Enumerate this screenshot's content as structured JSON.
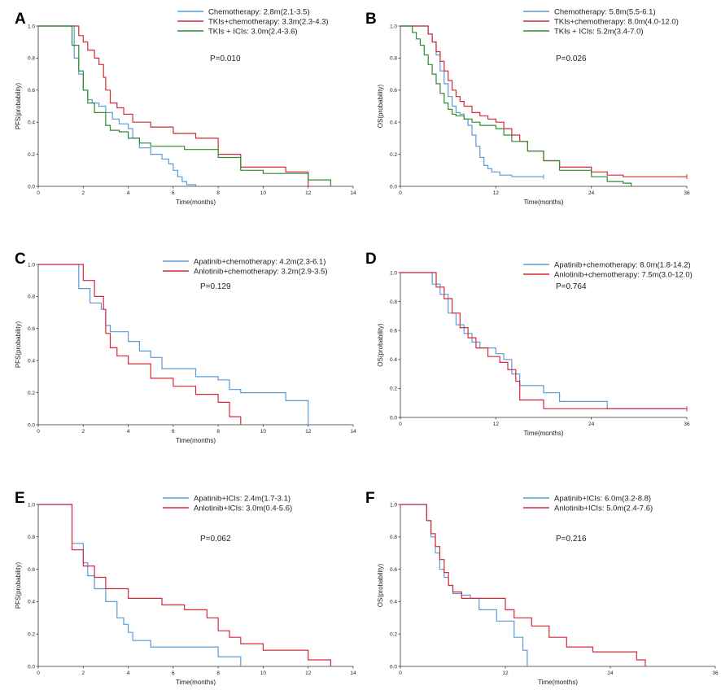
{
  "figure": "Kaplan-Meier survival curves (panels A-F)",
  "colors": {
    "blue": "#5b9bd5",
    "red": "#d62839",
    "green": "#2e8b2e"
  },
  "chart_data": [
    {
      "panel": "A",
      "type": "line",
      "xlabel": "Time(months)",
      "ylabel": "PFS(probability)",
      "xlim": [
        0,
        14
      ],
      "ylim": [
        0,
        1.0
      ],
      "xticks": [
        "0",
        "2",
        "4",
        "6",
        "8",
        "10",
        "12",
        "14"
      ],
      "yticks": [
        "0.0",
        "0.2",
        "0.4",
        "0.6",
        "0.8",
        "1.0"
      ],
      "pvalue": "P=0.010",
      "series": [
        {
          "name": "Chemotherapy: 2.8m(2.1-3.5)",
          "color": "blue",
          "x": [
            0,
            1.2,
            1.6,
            1.8,
            2.0,
            2.2,
            2.4,
            2.7,
            3.0,
            3.3,
            3.6,
            4.0,
            4.2,
            4.5,
            5.0,
            5.5,
            5.8,
            6.0,
            6.2,
            6.4,
            6.6,
            7.0
          ],
          "y": [
            1.0,
            1.0,
            0.8,
            0.7,
            0.6,
            0.54,
            0.52,
            0.5,
            0.46,
            0.42,
            0.39,
            0.36,
            0.3,
            0.24,
            0.2,
            0.17,
            0.14,
            0.1,
            0.06,
            0.03,
            0.01,
            0.0
          ]
        },
        {
          "name": "TKIs+chemotherapy: 3.3m(2.3-4.3)",
          "color": "red",
          "x": [
            0,
            1.6,
            1.8,
            2.0,
            2.2,
            2.5,
            2.7,
            2.9,
            3.0,
            3.2,
            3.5,
            3.8,
            4.2,
            5.0,
            6.0,
            7.0,
            8.0,
            9.0,
            11.0,
            12.0,
            12.0
          ],
          "y": [
            1.0,
            1.0,
            0.94,
            0.9,
            0.85,
            0.8,
            0.76,
            0.68,
            0.6,
            0.52,
            0.49,
            0.45,
            0.4,
            0.37,
            0.33,
            0.3,
            0.2,
            0.12,
            0.09,
            0.05,
            0.0
          ]
        },
        {
          "name": "TKIs + ICIs: 3.0m(2.4-3.6)",
          "color": "green",
          "x": [
            0,
            1.4,
            1.5,
            1.8,
            2.0,
            2.2,
            2.5,
            3.0,
            3.2,
            3.6,
            4.0,
            4.5,
            5.0,
            6.5,
            8.0,
            9.0,
            10.0,
            12.0,
            13.0
          ],
          "y": [
            1.0,
            1.0,
            0.88,
            0.72,
            0.6,
            0.52,
            0.46,
            0.38,
            0.35,
            0.34,
            0.3,
            0.27,
            0.25,
            0.23,
            0.18,
            0.1,
            0.08,
            0.04,
            0.0
          ]
        }
      ]
    },
    {
      "panel": "B",
      "type": "line",
      "xlabel": "Time(months)",
      "ylabel": "OS(probability)",
      "xlim": [
        0,
        36
      ],
      "ylim": [
        0,
        1.0
      ],
      "xticks": [
        "0",
        "12",
        "24",
        "36"
      ],
      "yticks": [
        "0.0",
        "0.2",
        "0.4",
        "0.6",
        "0.8",
        "1.0"
      ],
      "pvalue": "P=0.026",
      "series": [
        {
          "name": "Chemotherapy: 5.8m(5.5-6.1)",
          "color": "blue",
          "x": [
            0,
            3.0,
            3.5,
            4.0,
            4.5,
            5.0,
            5.5,
            6.0,
            6.5,
            7.0,
            7.5,
            8.0,
            8.5,
            9.0,
            9.5,
            10.0,
            10.5,
            11.0,
            11.5,
            12.5,
            14.0,
            16.0,
            18.0
          ],
          "y": [
            1.0,
            1.0,
            0.95,
            0.9,
            0.82,
            0.72,
            0.64,
            0.56,
            0.5,
            0.46,
            0.45,
            0.42,
            0.38,
            0.32,
            0.25,
            0.18,
            0.13,
            0.11,
            0.09,
            0.07,
            0.06,
            0.06,
            0.06
          ]
        },
        {
          "name": "TKIs+chemotherapy: 8.0m(4.0-12.0)",
          "color": "red",
          "x": [
            0,
            3.0,
            3.5,
            4.0,
            4.5,
            5.0,
            5.5,
            6.0,
            6.5,
            7.0,
            7.5,
            8.0,
            9.0,
            10.0,
            11.0,
            12.0,
            13.0,
            14.0,
            15.0,
            16.0,
            18.0,
            20.0,
            24.0,
            26.0,
            28.0,
            36.0
          ],
          "y": [
            1.0,
            1.0,
            0.95,
            0.9,
            0.84,
            0.78,
            0.72,
            0.66,
            0.6,
            0.56,
            0.53,
            0.5,
            0.46,
            0.44,
            0.42,
            0.4,
            0.36,
            0.32,
            0.28,
            0.22,
            0.16,
            0.12,
            0.09,
            0.07,
            0.06,
            0.06
          ]
        },
        {
          "name": "TKIs + ICIs: 5.2m(3.4-7.0)",
          "color": "green",
          "x": [
            0,
            1.0,
            1.5,
            2.0,
            2.5,
            3.0,
            3.5,
            4.0,
            4.5,
            5.0,
            5.5,
            6.0,
            6.5,
            7.0,
            7.5,
            8.0,
            9.0,
            10.0,
            12.0,
            13.0,
            14.0,
            16.0,
            18.0,
            20.0,
            24.0,
            26.0,
            28.0,
            29.0
          ],
          "y": [
            1.0,
            1.0,
            0.96,
            0.92,
            0.88,
            0.82,
            0.76,
            0.7,
            0.64,
            0.58,
            0.52,
            0.48,
            0.45,
            0.44,
            0.44,
            0.42,
            0.4,
            0.38,
            0.36,
            0.32,
            0.28,
            0.22,
            0.16,
            0.1,
            0.06,
            0.03,
            0.02,
            0.0
          ]
        }
      ]
    },
    {
      "panel": "C",
      "type": "line",
      "xlabel": "Time(months)",
      "ylabel": "PFS(probability)",
      "xlim": [
        0,
        14
      ],
      "ylim": [
        0,
        1.0
      ],
      "xticks": [
        "0",
        "2",
        "4",
        "6",
        "8",
        "10",
        "12",
        "14"
      ],
      "yticks": [
        "0.0",
        "0.2",
        "0.4",
        "0.6",
        "0.8",
        "1.0"
      ],
      "pvalue": "P=0.129",
      "series": [
        {
          "name": "Apatinib+chemotherapy: 4.2m(2.3-6.1)",
          "color": "blue",
          "x": [
            0,
            1.5,
            1.8,
            2.3,
            2.8,
            3.0,
            3.2,
            4.0,
            4.5,
            5.0,
            5.5,
            7.0,
            8.0,
            8.5,
            9.0,
            11.0,
            12.0
          ],
          "y": [
            1.0,
            1.0,
            0.85,
            0.76,
            0.72,
            0.62,
            0.58,
            0.52,
            0.46,
            0.42,
            0.35,
            0.3,
            0.28,
            0.22,
            0.2,
            0.15,
            0.0
          ]
        },
        {
          "name": "Anlotinib+chemotherapy: 3.2m(2.9-3.5)",
          "color": "red",
          "x": [
            0,
            1.5,
            2.0,
            2.5,
            2.9,
            3.0,
            3.2,
            3.5,
            4.0,
            5.0,
            6.0,
            7.0,
            8.0,
            8.5,
            9.0
          ],
          "y": [
            1.0,
            1.0,
            0.9,
            0.8,
            0.72,
            0.57,
            0.48,
            0.43,
            0.38,
            0.29,
            0.24,
            0.19,
            0.14,
            0.05,
            0.0
          ]
        }
      ]
    },
    {
      "panel": "D",
      "type": "line",
      "xlabel": "Time(months)",
      "ylabel": "OS(probability)",
      "xlim": [
        0,
        36
      ],
      "ylim": [
        0,
        1.0
      ],
      "xticks": [
        "0",
        "12",
        "24",
        "36"
      ],
      "yticks": [
        "0.0",
        "0.2",
        "0.4",
        "0.6",
        "0.8",
        "1.0"
      ],
      "pvalue": "P=0.764",
      "series": [
        {
          "name": "Apatinib+chemotherapy: 8.0m(1.8-14.2)",
          "color": "blue",
          "x": [
            0,
            3.5,
            4.0,
            5.0,
            6.0,
            7.0,
            8.0,
            9.0,
            10.0,
            12.0,
            13.0,
            14.0,
            15.0,
            18.0,
            20.0,
            24.0,
            26.0,
            36.0
          ],
          "y": [
            1.0,
            1.0,
            0.92,
            0.85,
            0.72,
            0.64,
            0.58,
            0.52,
            0.48,
            0.44,
            0.4,
            0.3,
            0.22,
            0.17,
            0.11,
            0.11,
            0.06,
            0.06
          ]
        },
        {
          "name": "Anlotinib+chemotherapy: 7.5m(3.0-12.0)",
          "color": "red",
          "x": [
            0,
            3.5,
            4.5,
            5.5,
            6.5,
            7.5,
            8.5,
            9.5,
            11.0,
            12.5,
            13.5,
            14.5,
            15.0,
            18.0,
            24.0,
            36.0
          ],
          "y": [
            1.0,
            1.0,
            0.9,
            0.82,
            0.72,
            0.62,
            0.55,
            0.48,
            0.42,
            0.38,
            0.33,
            0.25,
            0.12,
            0.06,
            0.06,
            0.06
          ]
        }
      ]
    },
    {
      "panel": "E",
      "type": "line",
      "xlabel": "Time(months)",
      "ylabel": "PFS(probability)",
      "xlim": [
        0,
        14
      ],
      "ylim": [
        0,
        1.0
      ],
      "xticks": [
        "0",
        "2",
        "4",
        "6",
        "8",
        "10",
        "12",
        "14"
      ],
      "yticks": [
        "0.0",
        "0.2",
        "0.4",
        "0.6",
        "0.8",
        "1.0"
      ],
      "pvalue": "P=0.062",
      "series": [
        {
          "name": "Apatinib+ICIs: 2.4m(1.7-3.1)",
          "color": "blue",
          "x": [
            0,
            1.0,
            1.5,
            2.0,
            2.2,
            2.5,
            3.0,
            3.5,
            3.8,
            4.0,
            4.2,
            5.0,
            7.0,
            8.0,
            9.0
          ],
          "y": [
            1.0,
            1.0,
            0.76,
            0.64,
            0.56,
            0.48,
            0.4,
            0.3,
            0.26,
            0.21,
            0.16,
            0.12,
            0.12,
            0.06,
            0.0
          ]
        },
        {
          "name": "Anlotinib+ICIs: 3.0m(0.4-5.6)",
          "color": "red",
          "x": [
            0,
            1.0,
            1.5,
            2.0,
            2.5,
            3.0,
            4.0,
            5.5,
            6.5,
            7.5,
            8.0,
            8.5,
            9.0,
            10.0,
            12.0,
            13.0
          ],
          "y": [
            1.0,
            1.0,
            0.72,
            0.62,
            0.55,
            0.48,
            0.42,
            0.38,
            0.35,
            0.3,
            0.22,
            0.18,
            0.14,
            0.1,
            0.04,
            0.0
          ]
        }
      ]
    },
    {
      "panel": "F",
      "type": "line",
      "xlabel": "Time(months)",
      "ylabel": "OS(probability)",
      "xlim": [
        0,
        36
      ],
      "ylim": [
        0,
        1.0
      ],
      "xticks": [
        "0",
        "12",
        "24",
        "36"
      ],
      "yticks": [
        "0.0",
        "0.2",
        "0.4",
        "0.6",
        "0.8",
        "1.0"
      ],
      "pvalue": "P=0.216",
      "series": [
        {
          "name": "Apatinib+ICIs: 6.0m(3.2-8.8)",
          "color": "blue",
          "x": [
            0,
            2.0,
            3.0,
            3.5,
            4.0,
            4.5,
            5.0,
            5.5,
            6.0,
            7.0,
            8.0,
            9.0,
            11.0,
            13.0,
            14.0,
            14.5
          ],
          "y": [
            1.0,
            1.0,
            0.9,
            0.8,
            0.7,
            0.6,
            0.55,
            0.5,
            0.45,
            0.44,
            0.42,
            0.35,
            0.28,
            0.18,
            0.1,
            0.0
          ]
        },
        {
          "name": "Anlotinib+ICIs: 5.0m(2.4-7.6)",
          "color": "red",
          "x": [
            0,
            2.0,
            3.0,
            3.5,
            4.0,
            4.5,
            5.0,
            5.5,
            6.0,
            7.0,
            9.0,
            12.0,
            13.0,
            15.0,
            17.0,
            19.0,
            22.0,
            24.0,
            27.0,
            28.0
          ],
          "y": [
            1.0,
            1.0,
            0.9,
            0.82,
            0.74,
            0.66,
            0.58,
            0.5,
            0.46,
            0.42,
            0.42,
            0.35,
            0.3,
            0.25,
            0.18,
            0.12,
            0.09,
            0.09,
            0.04,
            0.0
          ]
        }
      ]
    }
  ]
}
